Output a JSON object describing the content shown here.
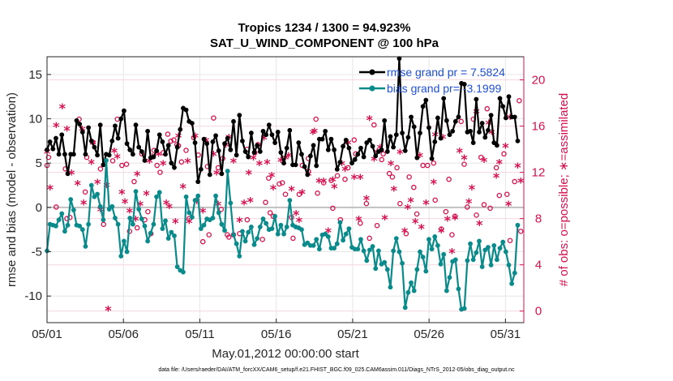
{
  "chart_data": {
    "type": "line",
    "title": "Tropics 1234 / 1300 = 94.923%",
    "subtitle": "SAT_U_WIND_COMPONENT @ 100 hPa",
    "xlabel": "May.01,2012 00:00:00 start",
    "ylabel_left": "rmse and bias (model - observation)",
    "ylabel_right": "# of obs: o=possible; ∗=assimilated",
    "x_tick_labels": [
      "05/01",
      "05/06",
      "05/11",
      "05/16",
      "05/21",
      "05/26",
      "05/31"
    ],
    "x_tick_days": [
      1,
      6,
      11,
      16,
      21,
      26,
      31
    ],
    "xlim": [
      1,
      32.2
    ],
    "ylim_left": [
      -13,
      17
    ],
    "y_ticks_left": [
      -10,
      -5,
      0,
      5,
      10,
      15
    ],
    "ylim_right": [
      -1,
      22
    ],
    "y_ticks_right": [
      0,
      4,
      8,
      12,
      16,
      20
    ],
    "grid": true,
    "legend_location": "top-right",
    "colors": {
      "rmse": "#000000",
      "bias": "#0a8a8a",
      "obs": "#d6104f",
      "zero_line": "#c0c0c0"
    },
    "series": [
      {
        "name": "rmse grand pr = 7.5824",
        "marker": "filled-circle",
        "values": [
          6.5,
          7.4,
          6.6,
          7.8,
          6.0,
          8.2,
          6.0,
          3.8,
          6.0,
          6.0,
          9.8,
          9.4,
          8.5,
          6.0,
          9.0,
          7.5,
          6.8,
          5.9,
          9.3,
          4.8,
          6.0,
          5.9,
          7.5,
          9.2,
          7.8,
          10.0,
          10.9,
          7.2,
          6.5,
          6.0,
          9.3,
          6.8,
          6.3,
          5.3,
          8.6,
          5.6,
          5.7,
          6.4,
          8.2,
          7.4,
          6.0,
          7.0,
          5.0,
          4.5,
          6.8,
          8.8,
          11.2,
          11.0,
          9.7,
          9.5,
          7.3,
          2.9,
          4.3,
          7.7,
          7.2,
          3.7,
          7.4,
          8.1,
          6.4,
          3.8,
          7.2,
          7.8,
          6.5,
          9.7,
          5.9,
          10.4,
          7.5,
          6.3,
          5.7,
          8.4,
          6.2,
          7.0,
          6.3,
          8.6,
          8.2,
          9.3,
          8.2,
          7.3,
          8.5,
          6.2,
          5.0,
          6.7,
          8.7,
          4.8,
          4.8,
          7.3,
          6.0,
          4.6,
          3.7,
          5.8,
          7.0,
          4.7,
          7.7,
          7.7,
          8.6,
          6.5,
          7.7,
          6.5,
          4.3,
          5.1,
          6.9,
          7.6,
          6.7,
          5.0,
          5.4,
          6.0,
          6.7,
          5.7,
          7.3,
          7.6,
          6.9,
          5.8,
          6.3,
          6.5,
          9.8,
          6.3,
          8.0,
          6.8,
          8.2,
          16.8,
          8.4,
          6.4,
          7.9,
          10.2,
          9.1,
          5.6,
          8.4,
          11.4,
          12.1,
          9.0,
          5.5,
          7.4,
          10.1,
          7.8,
          12.3,
          9.8,
          8.2,
          8.6,
          9.7,
          10.2,
          14.0,
          13.9,
          8.5,
          8.6,
          7.3,
          12.2,
          8.5,
          9.5,
          7.9,
          8.7,
          10.4,
          7.3,
          7.0,
          12.3,
          11.4,
          10.1,
          12.5,
          10.2,
          10.2,
          7.5
        ]
      },
      {
        "name": "bias grand pr= -3.1999",
        "marker": "filled-circle",
        "values": [
          -4.9,
          -1.9,
          -2.0,
          -2.1,
          -1.4,
          -0.7,
          -2.7,
          -2.0,
          0.9,
          -0.3,
          -2.0,
          -2.1,
          -2.5,
          -4.4,
          -1.9,
          2.5,
          1.2,
          1.5,
          0.1,
          -1.4,
          5.3,
          -0.2,
          0.1,
          -1.2,
          -1.9,
          -5.5,
          -3.8,
          -5.0,
          -1.2,
          -1.9,
          1.8,
          -0.2,
          -1.3,
          -2.1,
          -3.8,
          -2.9,
          -1.9,
          1.2,
          1.7,
          -2.4,
          -1.5,
          -3.5,
          -2.8,
          -3.2,
          -6.7,
          -7.1,
          -7.3,
          1.2,
          -0.6,
          -1.1,
          0.8,
          1.3,
          -2.4,
          -2.0,
          -1.3,
          -1.4,
          -1.2,
          1.3,
          -0.6,
          -1.9,
          -2.6,
          4.1,
          0.5,
          -3.1,
          -4.1,
          -5.5,
          -2.7,
          -3.8,
          -2.8,
          -2.2,
          -4.2,
          -3.5,
          -2.2,
          -1.3,
          -1.8,
          -2.5,
          -2.4,
          -1.0,
          -3.0,
          -2.0,
          -3.0,
          -2.2,
          0.8,
          -2.0,
          -2.2,
          -2.3,
          -2.5,
          -4.2,
          -4.0,
          -4.3,
          -4.3,
          -3.6,
          -4.7,
          -3.1,
          -3.0,
          -3.3,
          -4.6,
          -4.6,
          -4.1,
          -1.7,
          -3.7,
          -3.0,
          -2.4,
          -4.5,
          -4.7,
          -4.7,
          -3.6,
          -4.9,
          -6.0,
          -4.8,
          -4.4,
          -6.9,
          -4.9,
          -6.4,
          -6.2,
          -7.0,
          -9.0,
          -4.9,
          -3.5,
          -5.0,
          -6.3,
          -11.3,
          -9.6,
          -8.5,
          -9.4,
          -7.0,
          -5.0,
          -5.6,
          -7.2,
          -3.6,
          -4.7,
          -3.3,
          -4.3,
          -6.4,
          -5.3,
          -9.4,
          -7.9,
          -6.1,
          -5.9,
          -9.2,
          -11.5,
          -11.4,
          -6.0,
          -4.1,
          -5.9,
          -5.1,
          -3.8,
          -6.7,
          -4.8,
          -4.5,
          -6.5,
          -4.3,
          -5.9,
          -4.6,
          -3.9,
          -5.0,
          -6.5,
          -8.6,
          -7.4,
          -2.0
        ]
      }
    ],
    "obs_possible_x": [
      1.0,
      1.1,
      1.6,
      2.2,
      2.3,
      2.5,
      3.1,
      3.5,
      3.6,
      4.0,
      4.5,
      4.7,
      5.3,
      5.6,
      5.9,
      6.2,
      6.4,
      6.7,
      6.9,
      7.2,
      7.4,
      7.6,
      7.8,
      8.0,
      8.2,
      8.4,
      8.6,
      8.9,
      9.1,
      9.3,
      9.5,
      9.6,
      9.8,
      10.1,
      10.3,
      10.6,
      10.9,
      11.2,
      11.5,
      11.6,
      11.9,
      12.2,
      12.4,
      12.5,
      12.8,
      12.9,
      13.2,
      13.6,
      14.1,
      14.1,
      14.6,
      14.8,
      15.1,
      15.3,
      15.5,
      15.6,
      15.8,
      16.2,
      16.4,
      16.6,
      17.0,
      17.1,
      17.5,
      17.7,
      18.1,
      18.1,
      18.6,
      18.7,
      19.1,
      19.6,
      19.7,
      20.0,
      20.2,
      20.5,
      20.7,
      21.1,
      21.2,
      21.5,
      21.9,
      22.1,
      22.4,
      22.6,
      22.9,
      23.0,
      23.4,
      23.6,
      23.9,
      24.1,
      24.5,
      24.7,
      25.0,
      25.2,
      25.6,
      25.9,
      26.3,
      26.4,
      26.8,
      27.1,
      27.3,
      27.5,
      27.7,
      28.1,
      28.3,
      28.5,
      28.9,
      29.1,
      29.4,
      29.6,
      29.8,
      30.0,
      30.4,
      30.6,
      30.9,
      31.1,
      31.3,
      31.6,
      31.9,
      32.0
    ],
    "obs_possible_y": [
      12.6,
      13.3,
      9.0,
      12.3,
      8.0,
      8.1,
      16.6,
      10.3,
      13.3,
      14.6,
      12.3,
      7.5,
      13.0,
      16.6,
      12.6,
      12.7,
      6.9,
      11.2,
      7.2,
      13.6,
      7.9,
      8.6,
      6.7,
      13.9,
      12.6,
      12.0,
      13.7,
      15.3,
      14.7,
      14.8,
      14.4,
      14.3,
      12.9,
      13.9,
      8.0,
      15.0,
      13.5,
      6.0,
      12.5,
      6.6,
      16.7,
      12.4,
      8.8,
      13.2,
      6.6,
      6.4,
      6.6,
      6.7,
      7.9,
      14.0,
      13.7,
      14.4,
      6.2,
      9.4,
      11.5,
      8.5,
      8.2,
      11.0,
      11.1,
      10.1,
      8.1,
      6.3,
      10.1,
      12.6,
      13.2,
      12.1,
      16.6,
      10.2,
      11.1,
      11.3,
      8.9,
      11.7,
      7.9,
      11.4,
      12.4,
      14.8,
      13.6,
      7.6,
      9.3,
      6.3,
      16.1,
      7.4,
      13.1,
      13.6,
      11.9,
      11.6,
      12.4,
      9.3,
      6.7,
      11.6,
      10.7,
      8.4,
      12.6,
      12.6,
      12.8,
      9.6,
      7.1,
      8.6,
      11.4,
      6.6,
      8.2,
      16.4,
      12.7,
      9.0,
      16.6,
      8.3,
      13.3,
      9.2,
      17.5,
      8.9,
      12.4,
      10.0,
      13.6,
      10.1,
      6.1,
      11.2,
      18.2,
      6.9
    ],
    "obs_assimilated_x": [
      1.0,
      1.2,
      1.6,
      2.0,
      2.3,
      2.6,
      3.0,
      3.3,
      3.4,
      3.9,
      4.0,
      4.3,
      4.5,
      4.9,
      5.0,
      5.4,
      5.6,
      5.9,
      6.1,
      6.4,
      6.8,
      6.9,
      7.1,
      7.5,
      7.7,
      7.9,
      8.3,
      8.6,
      8.8,
      9.0,
      9.4,
      9.6,
      9.9,
      10.2,
      10.3,
      10.7,
      10.8,
      11.2,
      11.4,
      11.9,
      12.1,
      12.2,
      12.7,
      12.9,
      13.2,
      13.6,
      13.9,
      14.2,
      14.3,
      14.5,
      14.9,
      15.2,
      15.4,
      15.7,
      15.8,
      16.3,
      16.6,
      16.8,
      17.0,
      17.3,
      17.5,
      17.7,
      18.1,
      18.4,
      18.5,
      18.8,
      19.1,
      19.4,
      19.7,
      19.8,
      20.3,
      20.5,
      20.7,
      21.1,
      21.4,
      21.5,
      21.9,
      22.1,
      22.4,
      22.6,
      22.8,
      23.1,
      23.5,
      23.7,
      24.1,
      24.4,
      24.6,
      24.8,
      25.1,
      25.4,
      25.5,
      25.8,
      26.3,
      26.4,
      26.8,
      26.9,
      27.2,
      27.5,
      27.7,
      28.0,
      28.3,
      28.6,
      28.8,
      29.1,
      29.3,
      29.6,
      29.9,
      30.1,
      30.4,
      30.6,
      31.0,
      31.2,
      31.3,
      31.8,
      32.0
    ],
    "obs_assimilated_y": [
      13.6,
      10.5,
      15.9,
      17.5,
      15.6,
      11.8,
      10.9,
      15.6,
      9.2,
      12.7,
      14.4,
      11.0,
      8.6,
      10.7,
      0.0,
      13.7,
      13.2,
      10.1,
      9.3,
      8.5,
      7.8,
      11.7,
      9.1,
      10.0,
      12.8,
      13.2,
      13.4,
      12.6,
      9.2,
      8.9,
      7.6,
      15.0,
      10.6,
      12.8,
      7.6,
      15.0,
      9.3,
      8.5,
      14.6,
      13.4,
      11.8,
      9.1,
      14.2,
      14.9,
      12.8,
      7.7,
      9.2,
      11.8,
      9.4,
      13.1,
      12.6,
      14.8,
      12.7,
      11.6,
      10.5,
      12.9,
      13.1,
      13.3,
      10.4,
      8.3,
      7.7,
      10.1,
      11.7,
      15.3,
      15.4,
      11.1,
      11.1,
      6.8,
      11.2,
      10.6,
      12.6,
      12.1,
      14.4,
      11.4,
      7.8,
      11.4,
      9.6,
      16.5,
      13.0,
      13.6,
      14.0,
      7.9,
      12.6,
      10.4,
      13.6,
      6.8,
      8.8,
      9.4,
      7.6,
      13.3,
      7.1,
      9.2,
      11.0,
      15.1,
      6.8,
      14.9,
      7.8,
      5.0,
      7.9,
      13.7,
      13.1,
      9.3,
      10.5,
      17.1,
      7.4,
      12.9,
      16.1,
      15.3,
      11.5,
      12.7,
      14.1,
      9.1,
      16.6,
      12.4,
      11.1
    ]
  },
  "footer_text": "data file: /Users/raeder/DAI/ATM_forcXX/CAM6_setup/f.e21.FHIST_BGC.f09_025.CAM6assim.011/Diags_NTrS_2012-05/obs_diag_output.nc"
}
